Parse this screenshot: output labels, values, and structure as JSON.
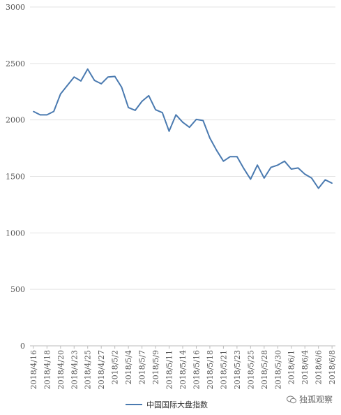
{
  "chart_data": {
    "type": "line",
    "ylim": [
      0,
      3000
    ],
    "yticks": [
      0,
      500,
      1000,
      1500,
      2000,
      2500,
      3000
    ],
    "grid": true,
    "legend_position": "bottom",
    "x": [
      "2018/4/16",
      "2018/4/17",
      "2018/4/18",
      "2018/4/19",
      "2018/4/20",
      "2018/4/21",
      "2018/4/23",
      "2018/4/24",
      "2018/4/25",
      "2018/4/26",
      "2018/4/27",
      "2018/4/28",
      "2018/5/2",
      "2018/5/3",
      "2018/5/4",
      "2018/5/5",
      "2018/5/7",
      "2018/5/8",
      "2018/5/9",
      "2018/5/10",
      "2018/5/11",
      "2018/5/12",
      "2018/5/14",
      "2018/5/15",
      "2018/5/16",
      "2018/5/17",
      "2018/5/18",
      "2018/5/19",
      "2018/5/21",
      "2018/5/22",
      "2018/5/23",
      "2018/5/24",
      "2018/5/25",
      "2018/5/26",
      "2018/5/28",
      "2018/5/29",
      "2018/5/30",
      "2018/5/31",
      "2018/6/1",
      "2018/6/2",
      "2018/6/4",
      "2018/6/5",
      "2018/6/6",
      "2018/6/7",
      "2018/6/8"
    ],
    "xtick_labels": [
      "2018/4/16",
      "2018/4/18",
      "2018/4/20",
      "2018/4/23",
      "2018/4/25",
      "2018/4/27",
      "2018/5/2",
      "2018/5/4",
      "2018/5/7",
      "2018/5/9",
      "2018/5/11",
      "2018/5/14",
      "2018/5/16",
      "2018/5/18",
      "2018/5/21",
      "2018/5/23",
      "2018/5/25",
      "2018/5/28",
      "2018/5/30",
      "2018/6/1",
      "2018/6/4",
      "2018/6/6",
      "2018/6/8"
    ],
    "series": [
      {
        "name": "中国国际大盘指数",
        "color": "#4a7ab0",
        "values": [
          2075,
          2045,
          2045,
          2075,
          2230,
          2305,
          2380,
          2345,
          2450,
          2350,
          2320,
          2380,
          2385,
          2290,
          2110,
          2085,
          2165,
          2215,
          2090,
          2065,
          1900,
          2045,
          1980,
          1935,
          2005,
          1995,
          1840,
          1730,
          1635,
          1675,
          1675,
          1570,
          1475,
          1600,
          1485,
          1580,
          1600,
          1635,
          1565,
          1575,
          1520,
          1485,
          1395,
          1470,
          1440
        ]
      }
    ]
  },
  "watermark": {
    "text": "独孤观察",
    "icon": "wechat-icon"
  }
}
